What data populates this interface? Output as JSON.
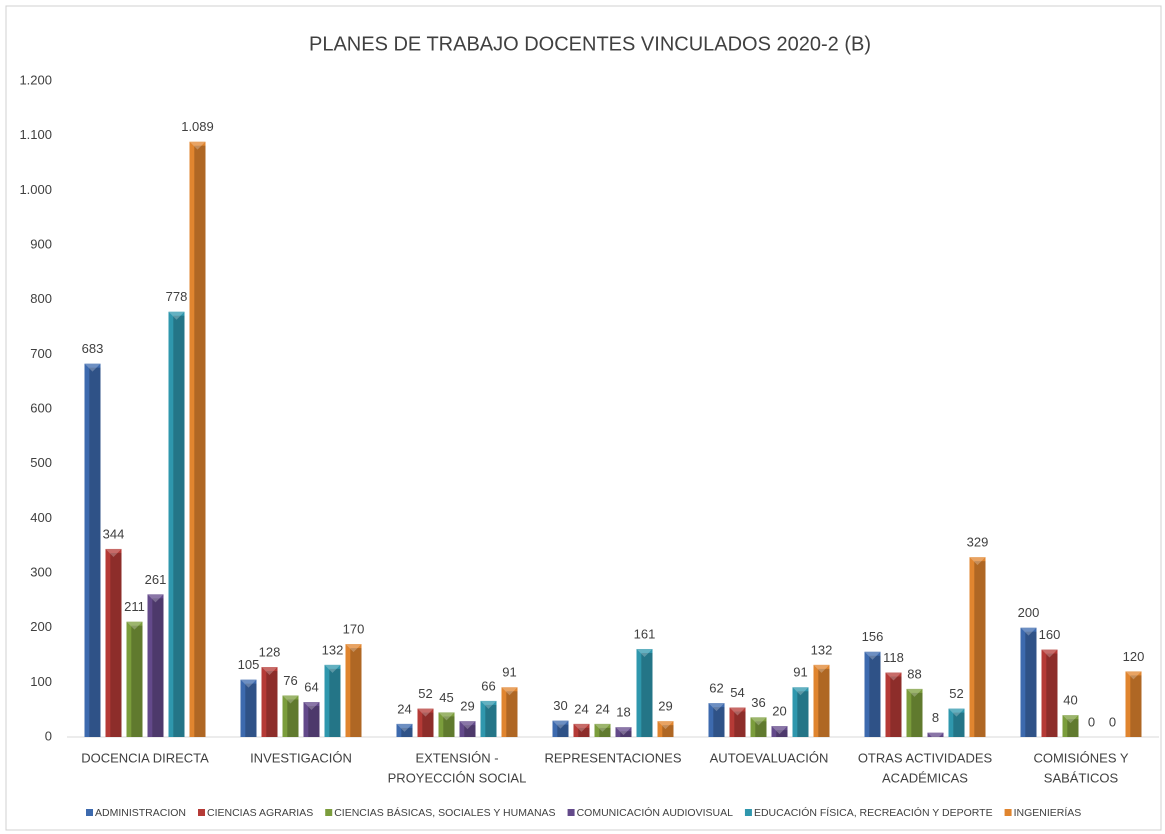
{
  "chart_data": {
    "type": "bar",
    "title": "PLANES DE TRABAJO DOCENTES VINCULADOS 2020-2 (B)",
    "categories": [
      [
        "DOCENCIA DIRECTA"
      ],
      [
        "INVESTIGACIÓN"
      ],
      [
        "EXTENSIÓN -",
        "PROYECCIÓN SOCIAL"
      ],
      [
        "REPRESENTACIONES"
      ],
      [
        "AUTOEVALUACIÓN"
      ],
      [
        "OTRAS ACTIVIDADES",
        "ACADÉMICAS"
      ],
      [
        "COMISIÓNES Y",
        "SABÁTICOS"
      ]
    ],
    "series": [
      {
        "name": "ADMINISTRACION",
        "color": "#3d6aae",
        "values": [
          683,
          105,
          24,
          30,
          62,
          156,
          200
        ]
      },
      {
        "name": "CIENCIAS AGRARIAS",
        "color": "#b53a36",
        "values": [
          344,
          128,
          52,
          24,
          54,
          118,
          160
        ]
      },
      {
        "name": "CIENCIAS BÁSICAS, SOCIALES Y HUMANAS",
        "color": "#7b9d3c",
        "values": [
          211,
          76,
          45,
          24,
          36,
          88,
          40
        ]
      },
      {
        "name": "COMUNICACIÓN AUDIOVISUAL",
        "color": "#63498a",
        "values": [
          261,
          64,
          29,
          18,
          20,
          8,
          0
        ]
      },
      {
        "name": "EDUCACIÓN FÍSICA, RECREACIÓN Y DEPORTE",
        "color": "#2f97ad",
        "values": [
          778,
          132,
          66,
          161,
          91,
          52,
          0
        ]
      },
      {
        "name": "INGENIERÍAS",
        "color": "#e0852f",
        "values": [
          1089,
          170,
          91,
          29,
          132,
          329,
          120
        ],
        "value_labels": [
          "1.089",
          "170",
          "91",
          "29",
          "132",
          "329",
          "120"
        ]
      }
    ],
    "ylim": [
      0,
      1200
    ],
    "yticks": [
      0,
      100,
      200,
      300,
      400,
      500,
      600,
      700,
      800,
      900,
      {
        "value": 1000,
        "label": "1.000"
      },
      {
        "value": 1100,
        "label": "1.100"
      },
      {
        "value": 1200,
        "label": "1.200"
      }
    ],
    "grid": false,
    "legend": "bottom"
  }
}
